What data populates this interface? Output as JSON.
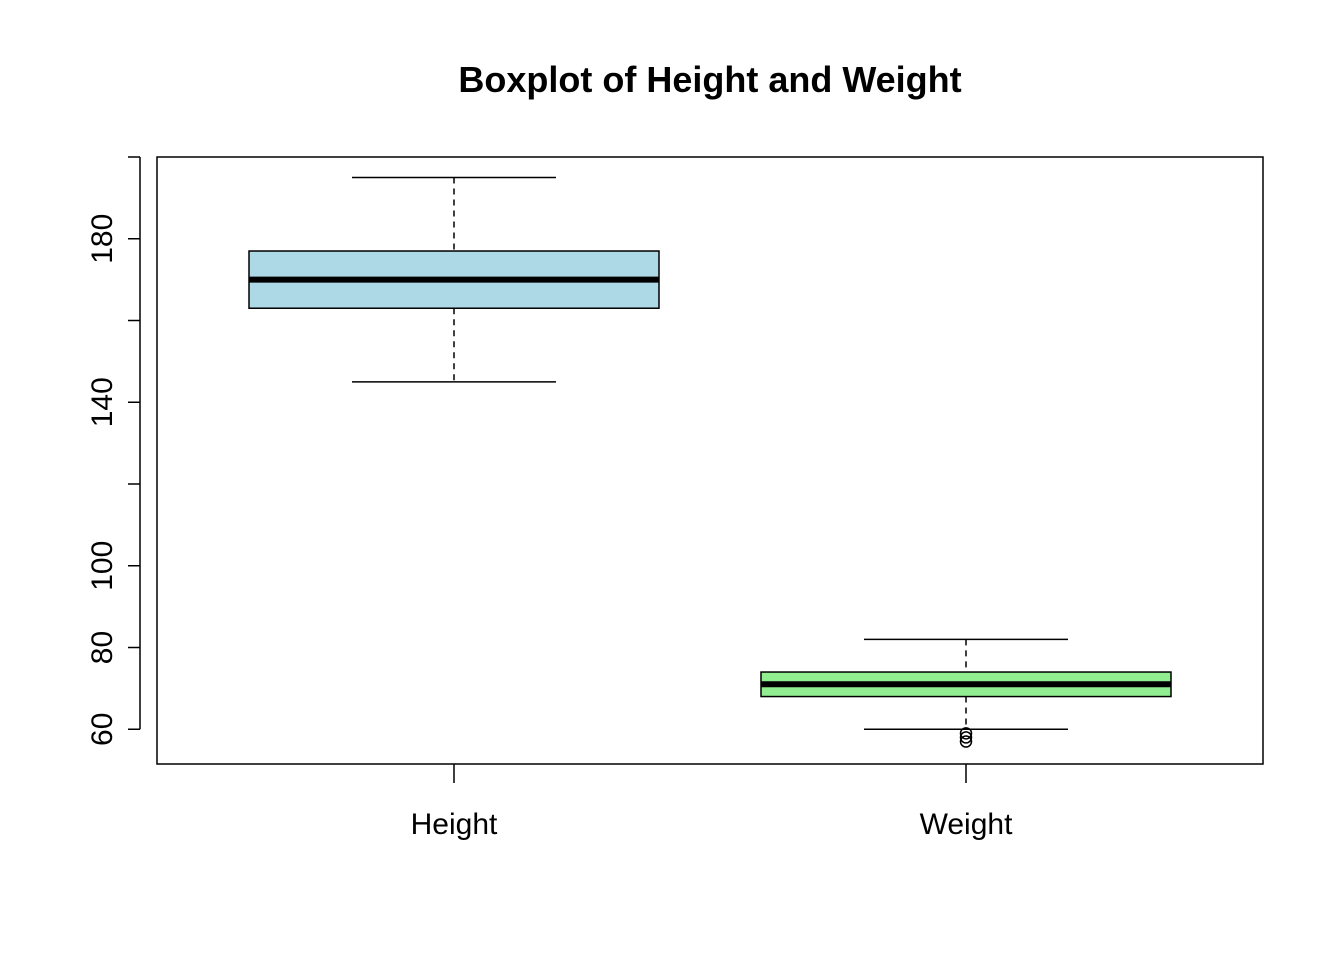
{
  "chart_data": {
    "type": "boxplot",
    "title": "Boxplot of Height and Weight",
    "xlabel": "",
    "ylabel": "",
    "ylim": [
      51.5,
      200
    ],
    "y_ticks": [
      60,
      80,
      100,
      140,
      180
    ],
    "y_minor_ticks": [
      120,
      160,
      200
    ],
    "categories": [
      "Height",
      "Weight"
    ],
    "boxes": [
      {
        "name": "Height",
        "color": "#add8e6",
        "whisker_low": 145,
        "q1": 163,
        "median": 170,
        "q3": 177,
        "whisker_high": 195,
        "outliers": []
      },
      {
        "name": "Weight",
        "color": "#90ee90",
        "whisker_low": 60,
        "q1": 68,
        "median": 71,
        "q3": 74,
        "whisker_high": 82,
        "outliers": [
          57,
          58,
          59
        ]
      }
    ]
  }
}
